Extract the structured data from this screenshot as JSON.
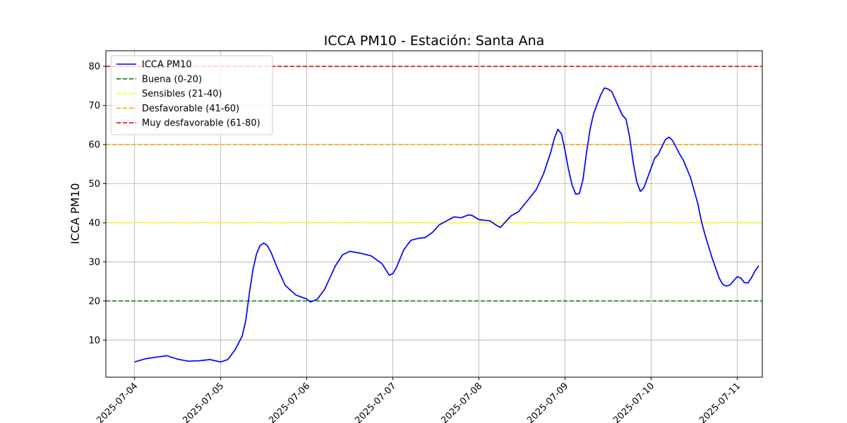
{
  "chart_data": {
    "type": "line",
    "title": "ICCA PM10 - Estación: Santa Ana",
    "xlabel": "",
    "ylabel": "ICCA PM10",
    "xlim": [
      "2025-07-03T16:00",
      "2025-07-11T07:00"
    ],
    "ylim": [
      0.5,
      84
    ],
    "x_ticks": [
      "2025-07-04",
      "2025-07-05",
      "2025-07-06",
      "2025-07-07",
      "2025-07-08",
      "2025-07-09",
      "2025-07-10",
      "2025-07-11"
    ],
    "y_ticks": [
      10,
      20,
      30,
      40,
      50,
      60,
      70,
      80
    ],
    "grid": true,
    "legend_position": "top-left",
    "series": [
      {
        "name": "ICCA PM10",
        "color": "#0000ff",
        "style": "solid",
        "points": [
          [
            "2025-07-04T00:00",
            4.4
          ],
          [
            "2025-07-04T03:00",
            5.2
          ],
          [
            "2025-07-04T06:00",
            5.6
          ],
          [
            "2025-07-04T09:00",
            6.0
          ],
          [
            "2025-07-04T12:00",
            5.1
          ],
          [
            "2025-07-04T15:00",
            4.6
          ],
          [
            "2025-07-04T18:00",
            4.7
          ],
          [
            "2025-07-04T21:00",
            5.0
          ],
          [
            "2025-07-05T00:00",
            4.4
          ],
          [
            "2025-07-05T02:00",
            5.0
          ],
          [
            "2025-07-05T04:00",
            7.5
          ],
          [
            "2025-07-05T06:00",
            11.0
          ],
          [
            "2025-07-05T07:00",
            15.0
          ],
          [
            "2025-07-05T08:00",
            22.0
          ],
          [
            "2025-07-05T09:00",
            28.0
          ],
          [
            "2025-07-05T10:00",
            32.0
          ],
          [
            "2025-07-05T11:00",
            34.2
          ],
          [
            "2025-07-05T12:00",
            34.8
          ],
          [
            "2025-07-05T13:00",
            34.2
          ],
          [
            "2025-07-05T14:00",
            32.5
          ],
          [
            "2025-07-05T16:00",
            28.0
          ],
          [
            "2025-07-05T18:00",
            24.0
          ],
          [
            "2025-07-05T21:00",
            21.5
          ],
          [
            "2025-07-06T00:00",
            20.5
          ],
          [
            "2025-07-06T01:00",
            19.7
          ],
          [
            "2025-07-06T03:00",
            20.5
          ],
          [
            "2025-07-06T05:00",
            23.0
          ],
          [
            "2025-07-06T08:00",
            29.0
          ],
          [
            "2025-07-06T10:00",
            31.8
          ],
          [
            "2025-07-06T12:00",
            32.7
          ],
          [
            "2025-07-06T15:00",
            32.2
          ],
          [
            "2025-07-06T18:00",
            31.5
          ],
          [
            "2025-07-06T21:00",
            29.5
          ],
          [
            "2025-07-06T23:00",
            26.6
          ],
          [
            "2025-07-07T00:00",
            27.0
          ],
          [
            "2025-07-07T01:00",
            28.5
          ],
          [
            "2025-07-07T03:00",
            33.0
          ],
          [
            "2025-07-07T05:00",
            35.5
          ],
          [
            "2025-07-07T07:00",
            36.0
          ],
          [
            "2025-07-07T09:00",
            36.2
          ],
          [
            "2025-07-07T11:00",
            37.5
          ],
          [
            "2025-07-07T13:00",
            39.5
          ],
          [
            "2025-07-07T15:00",
            40.5
          ],
          [
            "2025-07-07T17:00",
            41.5
          ],
          [
            "2025-07-07T19:00",
            41.3
          ],
          [
            "2025-07-07T21:00",
            42.0
          ],
          [
            "2025-07-07T22:00",
            41.9
          ],
          [
            "2025-07-08T00:00",
            40.8
          ],
          [
            "2025-07-08T03:00",
            40.5
          ],
          [
            "2025-07-08T05:00",
            39.3
          ],
          [
            "2025-07-08T06:00",
            38.8
          ],
          [
            "2025-07-08T08:00",
            40.8
          ],
          [
            "2025-07-08T09:00",
            41.8
          ],
          [
            "2025-07-08T11:00",
            42.8
          ],
          [
            "2025-07-08T14:00",
            46.2
          ],
          [
            "2025-07-08T16:00",
            48.5
          ],
          [
            "2025-07-08T18:00",
            52.5
          ],
          [
            "2025-07-08T20:00",
            58.0
          ],
          [
            "2025-07-08T21:00",
            61.5
          ],
          [
            "2025-07-08T22:00",
            63.9
          ],
          [
            "2025-07-08T23:00",
            62.8
          ],
          [
            "2025-07-09T00:00",
            58.5
          ],
          [
            "2025-07-09T01:00",
            53.5
          ],
          [
            "2025-07-09T02:00",
            49.5
          ],
          [
            "2025-07-09T03:00",
            47.3
          ],
          [
            "2025-07-09T04:00",
            47.5
          ],
          [
            "2025-07-09T05:00",
            51.0
          ],
          [
            "2025-07-09T06:00",
            58.0
          ],
          [
            "2025-07-09T07:00",
            64.0
          ],
          [
            "2025-07-09T08:00",
            68.0
          ],
          [
            "2025-07-09T10:00",
            72.8
          ],
          [
            "2025-07-09T11:00",
            74.5
          ],
          [
            "2025-07-09T12:00",
            74.2
          ],
          [
            "2025-07-09T13:00",
            73.6
          ],
          [
            "2025-07-09T15:00",
            69.5
          ],
          [
            "2025-07-09T16:00",
            67.5
          ],
          [
            "2025-07-09T17:00",
            66.5
          ],
          [
            "2025-07-09T18:00",
            62.0
          ],
          [
            "2025-07-09T19:00",
            55.5
          ],
          [
            "2025-07-09T20:00",
            50.5
          ],
          [
            "2025-07-09T21:00",
            48.0
          ],
          [
            "2025-07-09T22:00",
            49.0
          ],
          [
            "2025-07-10T00:00",
            54.0
          ],
          [
            "2025-07-10T01:00",
            56.5
          ],
          [
            "2025-07-10T02:00",
            57.5
          ],
          [
            "2025-07-10T04:00",
            61.3
          ],
          [
            "2025-07-10T05:00",
            61.9
          ],
          [
            "2025-07-10T06:00",
            61.0
          ],
          [
            "2025-07-10T08:00",
            57.5
          ],
          [
            "2025-07-10T09:00",
            56.0
          ],
          [
            "2025-07-10T11:00",
            51.5
          ],
          [
            "2025-07-10T13:00",
            45.0
          ],
          [
            "2025-07-10T14:00",
            40.5
          ],
          [
            "2025-07-10T15:00",
            37.0
          ],
          [
            "2025-07-10T17:00",
            31.0
          ],
          [
            "2025-07-10T19:00",
            25.8
          ],
          [
            "2025-07-10T20:00",
            24.2
          ],
          [
            "2025-07-10T21:00",
            23.8
          ],
          [
            "2025-07-10T22:00",
            24.1
          ],
          [
            "2025-07-11T00:00",
            26.2
          ],
          [
            "2025-07-11T01:00",
            25.9
          ],
          [
            "2025-07-11T02:00",
            24.7
          ],
          [
            "2025-07-11T03:00",
            24.6
          ],
          [
            "2025-07-11T04:00",
            26.0
          ],
          [
            "2025-07-11T05:00",
            27.7
          ],
          [
            "2025-07-11T06:00",
            29.0
          ]
        ]
      }
    ],
    "thresholds": [
      {
        "name": "Buena (0-20)",
        "value": 20,
        "color": "#008000",
        "style": "dashed"
      },
      {
        "name": "Sensibles (21-40)",
        "value": 40,
        "color": "#ffff00",
        "style": "dashed"
      },
      {
        "name": "Desfavorable (41-60)",
        "value": 60,
        "color": "#ffa500",
        "style": "dashed"
      },
      {
        "name": "Muy desfavorable (61-80)",
        "value": 80,
        "color": "#ff0000",
        "style": "dashed"
      }
    ]
  }
}
